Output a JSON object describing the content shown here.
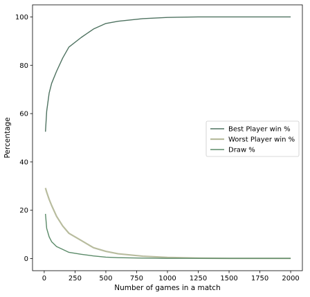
{
  "chart_data": {
    "type": "line",
    "title": "",
    "xlabel": "Number of games in a match",
    "ylabel": "Percentage",
    "xlim": [
      -95,
      2095
    ],
    "ylim": [
      -5,
      105
    ],
    "xticks": [
      0,
      250,
      500,
      750,
      1000,
      1250,
      1500,
      1750,
      2000
    ],
    "yticks": [
      0,
      20,
      40,
      60,
      80,
      100
    ],
    "grid": false,
    "legend_position": "center-right",
    "x": [
      10,
      20,
      40,
      60,
      100,
      150,
      200,
      300,
      400,
      500,
      600,
      800,
      1000,
      1250,
      1500,
      1750,
      2000
    ],
    "series": [
      {
        "name": "Best Player win %",
        "color": "#4e7260",
        "values": [
          52.5,
          61,
          68.5,
          72.5,
          77.5,
          83,
          87.5,
          91.5,
          95,
          97.3,
          98.2,
          99.3,
          99.8,
          100,
          100,
          100,
          100
        ]
      },
      {
        "name": "Worst Player win %",
        "color": "#b8bc9e",
        "values": [
          29.2,
          27.5,
          24.5,
          22,
          17.5,
          13.5,
          10.5,
          7.5,
          4.5,
          3,
          2,
          1,
          0.5,
          0.2,
          0.1,
          0.1,
          0.1
        ]
      },
      {
        "name": "Draw %",
        "color": "#5a8a68",
        "values": [
          18.5,
          12.5,
          9,
          7,
          5,
          3.8,
          2.6,
          1.8,
          1.1,
          0.6,
          0.4,
          0.2,
          0.1,
          0.1,
          0.1,
          0.1,
          0.1
        ]
      }
    ]
  }
}
